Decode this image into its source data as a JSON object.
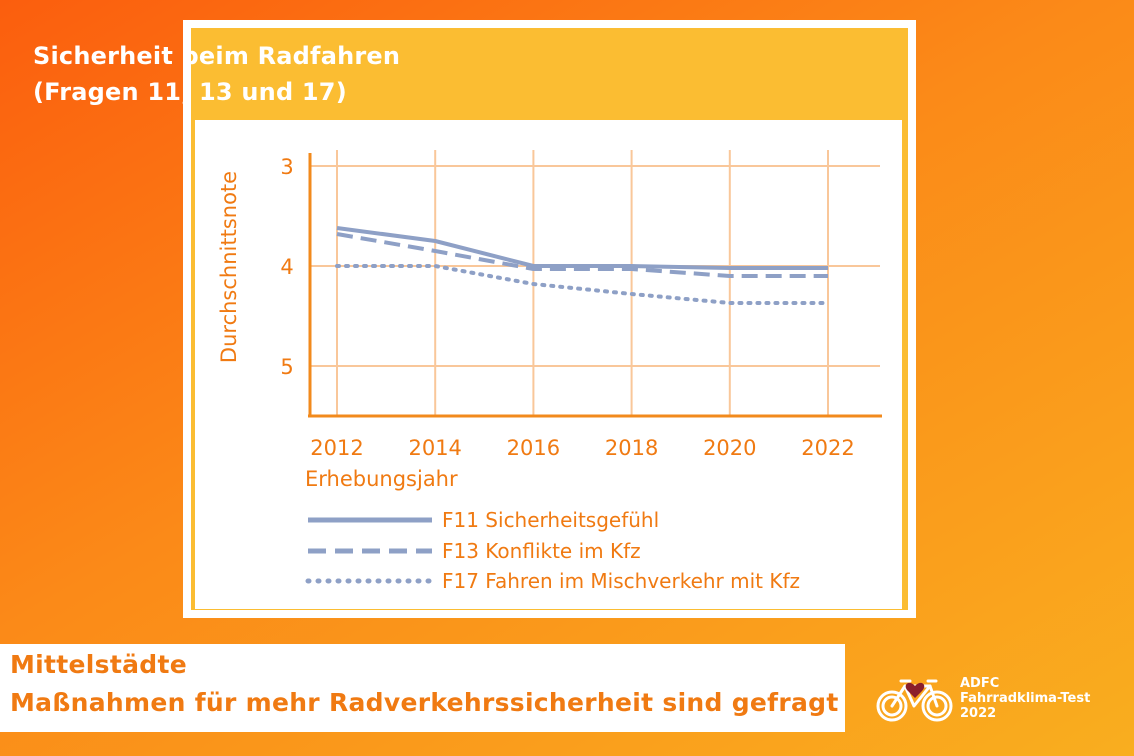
{
  "card": {
    "title_line1": "Sicherheit beim Radfahren",
    "title_line2": "(Fragen 11, 13 und 17)"
  },
  "chart_data": {
    "type": "line",
    "title": "Sicherheit beim Radfahren (Fragen 11, 13 und 17)",
    "xlabel": "Erhebungsjahr",
    "ylabel": "Durchschnittsnote",
    "x": [
      2012,
      2014,
      2016,
      2018,
      2020,
      2022
    ],
    "x_tick_labels": [
      "2012",
      "2014",
      "2016",
      "2018",
      "2020",
      "2022"
    ],
    "y_tick_labels": [
      "3",
      "4",
      "5"
    ],
    "y_ticks": [
      3,
      4,
      5
    ],
    "ylim": [
      3,
      5.5
    ],
    "y_inverted": true,
    "grid": true,
    "legend_position": "bottom",
    "series": [
      {
        "name": "F11 Sicherheitsgefühl",
        "style": "solid",
        "values": [
          3.62,
          3.75,
          4.0,
          4.0,
          4.02,
          4.02
        ]
      },
      {
        "name": "F13 Konflikte im Kfz",
        "style": "dashed",
        "values": [
          3.68,
          3.85,
          4.03,
          4.03,
          4.1,
          4.1
        ]
      },
      {
        "name": "F17 Fahren im Mischverkehr mit Kfz",
        "style": "dotted",
        "values": [
          4.0,
          4.0,
          4.18,
          4.28,
          4.37,
          4.37
        ]
      }
    ],
    "colors": {
      "axis": "#f28a1c",
      "grid": "#f9c79a",
      "series": "#8ea0c6",
      "labels": "#f07a12"
    }
  },
  "footer": {
    "line1": "Mittelstädte",
    "line2": "Maßnahmen für mehr Radverkehrssicherheit sind gefragt"
  },
  "logo": {
    "line1": "ADFC",
    "line2": "Fahrradklima-Test",
    "line3": "2022"
  },
  "colors": {
    "brand_orange": "#f07a12",
    "card_yellow": "#fbbd32"
  }
}
